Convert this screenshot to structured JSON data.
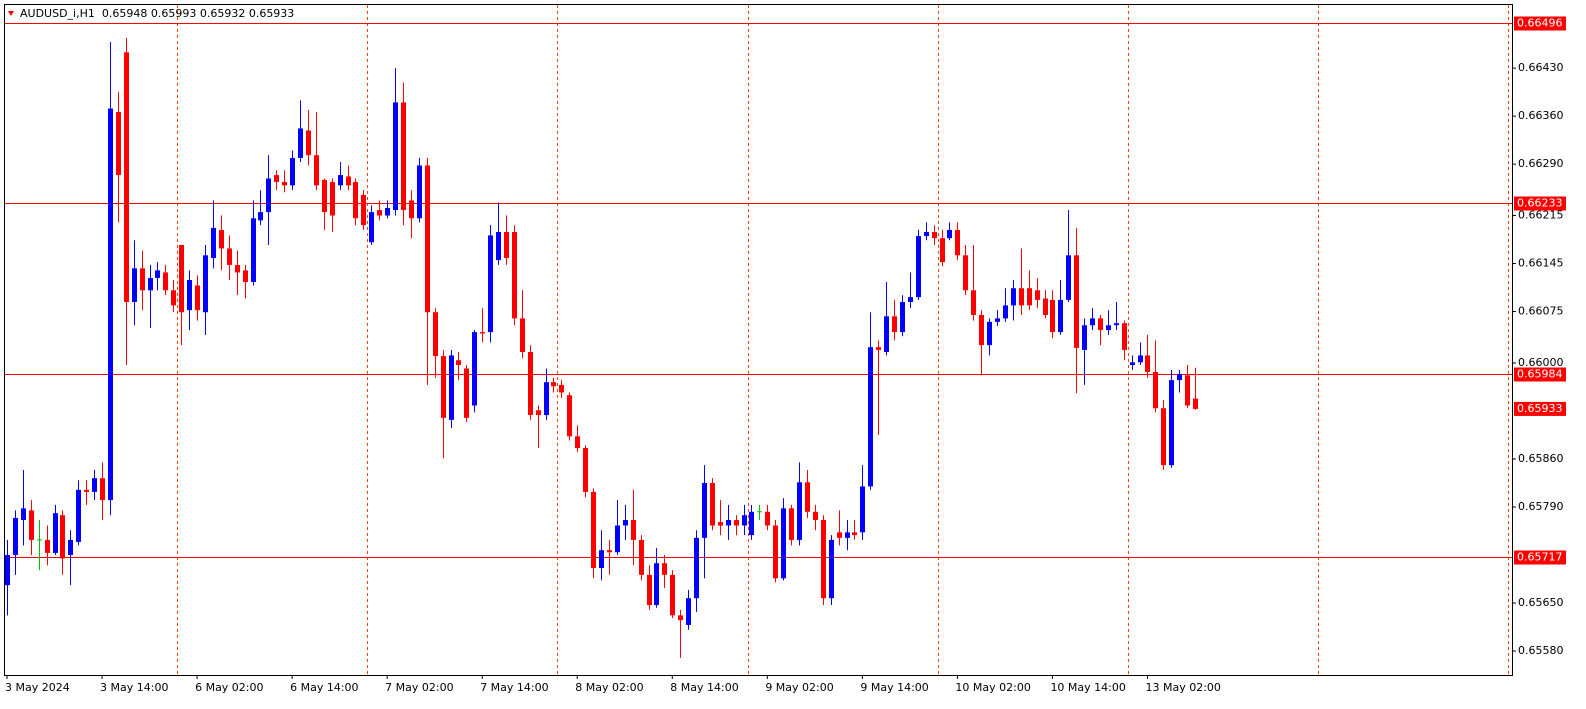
{
  "chart_data": {
    "type": "candlestick",
    "title": "AUDUSD_i,H1  0.65948 0.65993 0.65932 0.65933",
    "up_color": "#0000ff",
    "down_color": "#ff0000",
    "doji_color": "#00c000",
    "hline_color": "#ff0000",
    "separator_color": "#ff4000",
    "ylim": [
      0.65545,
      0.66522
    ],
    "yticks": [
      {
        "value": 0.6643,
        "label": "0.66430"
      },
      {
        "value": 0.6636,
        "label": "0.66360"
      },
      {
        "value": 0.6629,
        "label": "0.66290"
      },
      0.66215,
      0.66145,
      0.66075,
      {
        "value": 0.66,
        "label": "0.66000"
      },
      {
        "value": 0.6586,
        "label": "0.65860"
      },
      {
        "value": 0.6579,
        "label": "0.65790"
      },
      {
        "value": 0.6565,
        "label": "0.65650"
      },
      {
        "value": 0.6558,
        "label": "0.65580"
      }
    ],
    "hlines": [
      0.66496,
      0.66233,
      0.65984,
      0.65717
    ],
    "xticks": [
      {
        "value": 0,
        "label": "3 May 2024"
      },
      {
        "value": 12,
        "label": "3 May 14:00"
      },
      {
        "value": 24,
        "label": "6 May 02:00"
      },
      {
        "value": 36,
        "label": "6 May 14:00"
      },
      {
        "value": 48,
        "label": "7 May 02:00"
      },
      {
        "value": 60,
        "label": "7 May 14:00"
      },
      {
        "value": 72,
        "label": "8 May 02:00"
      },
      {
        "value": 84,
        "label": "8 May 14:00"
      },
      {
        "value": 96,
        "label": "9 May 02:00"
      },
      {
        "value": 108,
        "label": "9 May 14:00"
      },
      {
        "value": 120,
        "label": "10 May 02:00"
      },
      {
        "value": 132,
        "label": "10 May 14:00"
      },
      {
        "value": 144,
        "label": "13 May 02:00"
      }
    ],
    "open": [
      0.65676,
      0.6572,
      0.65771,
      0.65785,
      0.65742,
      0.65742,
      0.65723,
      0.65778,
      0.6572,
      0.65739,
      0.65815,
      0.65812,
      0.65832,
      0.658,
      0.66366,
      0.66453,
      0.66089,
      0.66138,
      0.66106,
      0.66124,
      0.66132,
      0.66106,
      0.66172,
      0.66077,
      0.66113,
      0.66074,
      0.66153,
      0.66194,
      0.66167,
      0.66143,
      0.66135,
      0.66118,
      0.66208,
      0.6622,
      0.66274,
      0.66264,
      0.66259,
      0.66299,
      0.66339,
      0.66303,
      0.66267,
      0.66264,
      0.66259,
      0.66272,
      0.66264,
      0.66245,
      0.66176,
      0.66223,
      0.66215,
      0.66223,
      0.6638,
      0.66237,
      0.66211,
      0.66288,
      0.66074,
      0.6601,
      0.65917,
      0.66004,
      0.65992,
      0.65938,
      0.66045,
      0.66045,
      0.6615,
      0.66191,
      0.66191,
      0.66065,
      0.66016,
      0.65931,
      0.65924,
      0.65972,
      0.65968,
      0.65953,
      0.65893,
      0.65876,
      0.65812,
      0.65701,
      0.65727,
      0.65724,
      0.65763,
      0.65771,
      0.65742,
      0.65691,
      0.65647,
      0.65708,
      0.65691,
      0.65632,
      0.65618,
      0.65657,
      0.65745,
      0.65825,
      0.65768,
      0.65763,
      0.65771,
      0.65763,
      0.65749,
      0.65783,
      0.65783,
      0.65763,
      0.65686,
      0.65788,
      0.65742,
      0.65826,
      0.65783,
      0.65771,
      0.65657,
      0.65753,
      0.65745,
      0.65753,
      0.65753,
      0.6582,
      0.66023,
      0.66016,
      0.66068,
      0.66045,
      0.66089,
      0.66096,
      0.66185,
      0.66191,
      0.66182,
      0.66182,
      0.66194,
      0.66157,
      0.66106,
      0.6607,
      0.66026,
      0.6606,
      0.66065,
      0.66084,
      0.66109,
      0.66109,
      0.66106,
      0.66094,
      0.66092,
      0.66045,
      0.66092,
      0.66157,
      0.66019,
      0.66055,
      0.66065,
      0.66048,
      0.66055,
      0.66058,
      0.65997,
      0.66001,
      0.66011,
      0.65987,
      0.65934,
      0.65851,
      0.65975,
      0.65982,
      0.65948
    ],
    "high": [
      0.65742,
      0.65785,
      0.65844,
      0.658,
      0.65771,
      0.65763,
      0.65793,
      0.65785,
      0.65756,
      0.65829,
      0.65829,
      0.65844,
      0.65855,
      0.66468,
      0.66395,
      0.66474,
      0.66179,
      0.66164,
      0.66143,
      0.66147,
      0.66143,
      0.66121,
      0.66172,
      0.66135,
      0.66128,
      0.66172,
      0.66237,
      0.66215,
      0.66186,
      0.66164,
      0.66143,
      0.66237,
      0.66252,
      0.66303,
      0.66281,
      0.66281,
      0.6631,
      0.66383,
      0.66369,
      0.66366,
      0.66269,
      0.66269,
      0.66293,
      0.66288,
      0.66269,
      0.66252,
      0.6623,
      0.66237,
      0.66237,
      0.6643,
      0.66409,
      0.66252,
      0.66299,
      0.66299,
      0.6608,
      0.66019,
      0.66019,
      0.66016,
      0.65997,
      0.66048,
      0.6608,
      0.66201,
      0.66234,
      0.66215,
      0.66201,
      0.66106,
      0.66026,
      0.65938,
      0.65992,
      0.65978,
      0.65975,
      0.65957,
      0.65909,
      0.6588,
      0.65817,
      0.65756,
      0.65742,
      0.658,
      0.65793,
      0.65815,
      0.65749,
      0.65705,
      0.6573,
      0.6572,
      0.65698,
      0.6564,
      0.65669,
      0.65756,
      0.65851,
      0.65832,
      0.658,
      0.65793,
      0.65778,
      0.65793,
      0.65793,
      0.65793,
      0.65793,
      0.65771,
      0.65803,
      0.65793,
      0.65855,
      0.65844,
      0.65793,
      0.65778,
      0.65749,
      0.65785,
      0.65771,
      0.65771,
      0.65851,
      0.66074,
      0.66033,
      0.66118,
      0.66092,
      0.66099,
      0.66132,
      0.66194,
      0.66205,
      0.66201,
      0.66194,
      0.66205,
      0.66205,
      0.66172,
      0.66172,
      0.66077,
      0.66065,
      0.66077,
      0.66109,
      0.66121,
      0.66167,
      0.66135,
      0.66124,
      0.66106,
      0.66106,
      0.66121,
      0.66223,
      0.66197,
      0.66065,
      0.6608,
      0.6607,
      0.66077,
      0.66089,
      0.66062,
      0.66011,
      0.6603,
      0.66041,
      0.66033,
      0.65946,
      0.6599,
      0.6599,
      0.65997,
      0.65993
    ],
    "low": [
      0.65632,
      0.65691,
      0.65734,
      0.6572,
      0.65698,
      0.65705,
      0.6572,
      0.65691,
      0.65676,
      0.65734,
      0.65793,
      0.658,
      0.65771,
      0.65778,
      0.66205,
      0.65997,
      0.66055,
      0.66077,
      0.66051,
      0.66106,
      0.66099,
      0.66074,
      0.66026,
      0.66048,
      0.66062,
      0.66041,
      0.66138,
      0.66135,
      0.66121,
      0.66099,
      0.66094,
      0.66113,
      0.66201,
      0.66172,
      0.66252,
      0.66249,
      0.66252,
      0.66293,
      0.66288,
      0.66252,
      0.66194,
      0.66191,
      0.66252,
      0.66252,
      0.66201,
      0.66194,
      0.66172,
      0.66208,
      0.66211,
      0.66215,
      0.66201,
      0.66182,
      0.66205,
      0.65968,
      0.65978,
      0.65861,
      0.65905,
      0.65975,
      0.65914,
      0.65928,
      0.6603,
      0.6603,
      0.66143,
      0.66143,
      0.66055,
      0.66007,
      0.65917,
      0.65876,
      0.65917,
      0.65957,
      0.65949,
      0.65887,
      0.6587,
      0.65804,
      0.65686,
      0.65683,
      0.65691,
      0.6572,
      0.65742,
      0.65705,
      0.65683,
      0.6564,
      0.65643,
      0.65672,
      0.65628,
      0.6557,
      0.65611,
      0.65637,
      0.65686,
      0.65756,
      0.65749,
      0.65742,
      0.65749,
      0.65749,
      0.65742,
      0.65771,
      0.65756,
      0.6568,
      0.65683,
      0.65734,
      0.65734,
      0.65774,
      0.65756,
      0.65647,
      0.65647,
      0.65734,
      0.65727,
      0.65742,
      0.65742,
      0.65815,
      0.65895,
      0.66011,
      0.66033,
      0.66039,
      0.6608,
      0.66092,
      0.66179,
      0.66172,
      0.66141,
      0.66179,
      0.6615,
      0.66099,
      0.66062,
      0.65982,
      0.66011,
      0.66054,
      0.6606,
      0.66062,
      0.6607,
      0.66077,
      0.6608,
      0.66065,
      0.66036,
      0.66041,
      0.66089,
      0.65956,
      0.65968,
      0.66048,
      0.66026,
      0.66041,
      0.66048,
      0.66004,
      0.6599,
      0.65997,
      0.65978,
      0.65928,
      0.65844,
      0.65847,
      0.65957,
      0.65934,
      0.65932
    ],
    "close": [
      0.6572,
      0.65774,
      0.65788,
      0.65742,
      0.65742,
      0.65723,
      0.65781,
      0.65715,
      0.65742,
      0.65815,
      0.65812,
      0.65832,
      0.658,
      0.66371,
      0.66274,
      0.66089,
      0.66138,
      0.66106,
      0.66124,
      0.66135,
      0.66106,
      0.66084,
      0.66074,
      0.66121,
      0.66077,
      0.66157,
      0.66197,
      0.66167,
      0.66143,
      0.66132,
      0.66118,
      0.66211,
      0.6622,
      0.66269,
      0.66264,
      0.66259,
      0.66299,
      0.66342,
      0.66303,
      0.66259,
      0.6622,
      0.66215,
      0.66274,
      0.66259,
      0.66211,
      0.66201,
      0.6622,
      0.66215,
      0.66226,
      0.6638,
      0.66223,
      0.66211,
      0.66288,
      0.66074,
      0.6601,
      0.6592,
      0.66011,
      0.65997,
      0.6592,
      0.66045,
      0.66043,
      0.66186,
      0.66191,
      0.66153,
      0.66065,
      0.66016,
      0.65924,
      0.65924,
      0.65972,
      0.65966,
      0.65957,
      0.65893,
      0.65876,
      0.65812,
      0.65701,
      0.65727,
      0.65724,
      0.65763,
      0.65771,
      0.65742,
      0.65691,
      0.65647,
      0.65708,
      0.65691,
      0.65632,
      0.65625,
      0.65657,
      0.65745,
      0.65825,
      0.65763,
      0.65763,
      0.65771,
      0.65763,
      0.65778,
      0.65783,
      0.65783,
      0.65763,
      0.65686,
      0.65788,
      0.65742,
      0.65826,
      0.65783,
      0.65771,
      0.65657,
      0.65742,
      0.65745,
      0.65753,
      0.65749,
      0.6582,
      0.66023,
      0.66019,
      0.66068,
      0.66045,
      0.66089,
      0.66096,
      0.66185,
      0.66191,
      0.66182,
      0.66147,
      0.66194,
      0.66157,
      0.66106,
      0.6607,
      0.66026,
      0.6606,
      0.66065,
      0.66084,
      0.66109,
      0.66084,
      0.66084,
      0.66092,
      0.6607,
      0.66045,
      0.66092,
      0.66157,
      0.66022,
      0.66055,
      0.66065,
      0.66048,
      0.66055,
      0.66058,
      0.66019,
      0.66001,
      0.66011,
      0.65987,
      0.65934,
      0.65851,
      0.65975,
      0.65984,
      0.65938,
      0.65933
    ]
  }
}
